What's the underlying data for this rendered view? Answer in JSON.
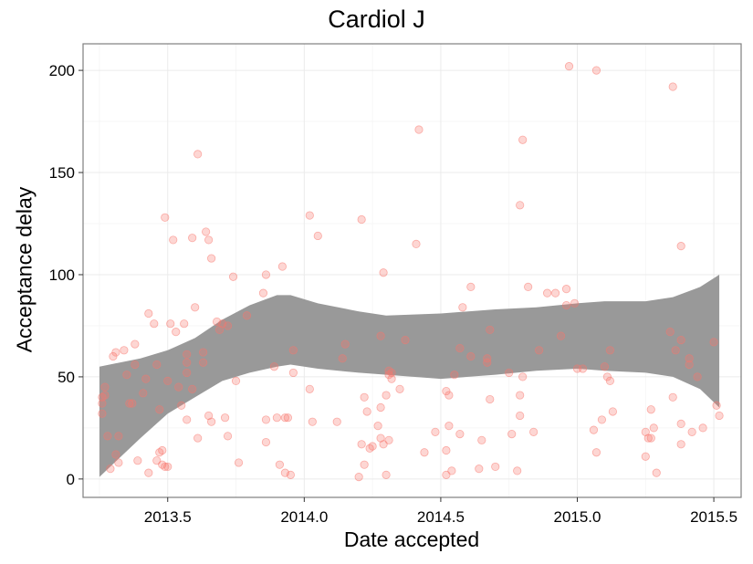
{
  "chart_data": {
    "type": "scatter",
    "title": "Cardiol J",
    "xlabel": "Date accepted",
    "ylabel": "Acceptance delay",
    "xlim": [
      2013.19,
      2015.6
    ],
    "ylim": [
      -9,
      213
    ],
    "x_ticks": [
      2013.5,
      2014.0,
      2014.5,
      2015.0,
      2015.5
    ],
    "x_tick_labels": [
      "2013.5",
      "2014.0",
      "2014.5",
      "2015.0",
      "2015.5"
    ],
    "y_ticks": [
      0,
      50,
      100,
      150,
      200
    ],
    "y_tick_labels": [
      "0",
      "50",
      "100",
      "150",
      "200"
    ],
    "grid": true,
    "point_color": "#f8766d",
    "band_color": "#999999",
    "points": [
      [
        2013.26,
        32
      ],
      [
        2013.26,
        37
      ],
      [
        2013.26,
        40
      ],
      [
        2013.27,
        41
      ],
      [
        2013.27,
        45
      ],
      [
        2013.28,
        21
      ],
      [
        2013.29,
        5
      ],
      [
        2013.3,
        60
      ],
      [
        2013.31,
        62
      ],
      [
        2013.31,
        12
      ],
      [
        2013.32,
        8
      ],
      [
        2013.32,
        21
      ],
      [
        2013.34,
        63
      ],
      [
        2013.35,
        51
      ],
      [
        2013.36,
        37
      ],
      [
        2013.37,
        37
      ],
      [
        2013.38,
        66
      ],
      [
        2013.38,
        56
      ],
      [
        2013.39,
        9
      ],
      [
        2013.41,
        42
      ],
      [
        2013.42,
        49
      ],
      [
        2013.43,
        81
      ],
      [
        2013.43,
        3
      ],
      [
        2013.45,
        76
      ],
      [
        2013.46,
        56
      ],
      [
        2013.46,
        9
      ],
      [
        2013.47,
        13
      ],
      [
        2013.47,
        34
      ],
      [
        2013.48,
        14
      ],
      [
        2013.48,
        7
      ],
      [
        2013.49,
        6
      ],
      [
        2013.49,
        128
      ],
      [
        2013.5,
        48
      ],
      [
        2013.5,
        6
      ],
      [
        2013.51,
        76
      ],
      [
        2013.52,
        117
      ],
      [
        2013.53,
        72
      ],
      [
        2013.54,
        45
      ],
      [
        2013.55,
        36
      ],
      [
        2013.56,
        76
      ],
      [
        2013.57,
        61
      ],
      [
        2013.57,
        57
      ],
      [
        2013.57,
        52
      ],
      [
        2013.57,
        29
      ],
      [
        2013.59,
        44
      ],
      [
        2013.59,
        118
      ],
      [
        2013.6,
        84
      ],
      [
        2013.61,
        20
      ],
      [
        2013.61,
        159
      ],
      [
        2013.63,
        62
      ],
      [
        2013.63,
        57
      ],
      [
        2013.64,
        121
      ],
      [
        2013.65,
        31
      ],
      [
        2013.65,
        117
      ],
      [
        2013.66,
        108
      ],
      [
        2013.66,
        28
      ],
      [
        2013.68,
        77
      ],
      [
        2013.69,
        73
      ],
      [
        2013.7,
        76
      ],
      [
        2013.71,
        30
      ],
      [
        2013.72,
        75
      ],
      [
        2013.72,
        21
      ],
      [
        2013.74,
        99
      ],
      [
        2013.75,
        48
      ],
      [
        2013.76,
        8
      ],
      [
        2013.79,
        80
      ],
      [
        2013.85,
        91
      ],
      [
        2013.86,
        100
      ],
      [
        2013.86,
        29
      ],
      [
        2013.86,
        18
      ],
      [
        2013.89,
        55
      ],
      [
        2013.9,
        30
      ],
      [
        2013.91,
        7
      ],
      [
        2013.92,
        104
      ],
      [
        2013.93,
        3
      ],
      [
        2013.93,
        30
      ],
      [
        2013.94,
        30
      ],
      [
        2013.95,
        2
      ],
      [
        2013.96,
        63
      ],
      [
        2013.96,
        52
      ],
      [
        2014.02,
        44
      ],
      [
        2014.02,
        129
      ],
      [
        2014.03,
        28
      ],
      [
        2014.05,
        119
      ],
      [
        2014.12,
        28
      ],
      [
        2014.14,
        59
      ],
      [
        2014.15,
        66
      ],
      [
        2014.2,
        1
      ],
      [
        2014.21,
        127
      ],
      [
        2014.21,
        17
      ],
      [
        2014.22,
        40
      ],
      [
        2014.22,
        7
      ],
      [
        2014.23,
        33
      ],
      [
        2014.24,
        15
      ],
      [
        2014.25,
        16
      ],
      [
        2014.27,
        26
      ],
      [
        2014.28,
        35
      ],
      [
        2014.28,
        70
      ],
      [
        2014.28,
        20
      ],
      [
        2014.29,
        101
      ],
      [
        2014.29,
        17
      ],
      [
        2014.3,
        41
      ],
      [
        2014.3,
        2
      ],
      [
        2014.31,
        19
      ],
      [
        2014.31,
        53
      ],
      [
        2014.31,
        51
      ],
      [
        2014.32,
        52
      ],
      [
        2014.32,
        49
      ],
      [
        2014.35,
        44
      ],
      [
        2014.37,
        68
      ],
      [
        2014.41,
        115
      ],
      [
        2014.42,
        171
      ],
      [
        2014.44,
        13
      ],
      [
        2014.48,
        23
      ],
      [
        2014.52,
        2
      ],
      [
        2014.52,
        14
      ],
      [
        2014.52,
        43
      ],
      [
        2014.53,
        41
      ],
      [
        2014.53,
        26
      ],
      [
        2014.54,
        4
      ],
      [
        2014.55,
        51
      ],
      [
        2014.57,
        22
      ],
      [
        2014.57,
        64
      ],
      [
        2014.58,
        84
      ],
      [
        2014.61,
        60
      ],
      [
        2014.61,
        94
      ],
      [
        2014.64,
        5
      ],
      [
        2014.65,
        19
      ],
      [
        2014.67,
        57
      ],
      [
        2014.67,
        59
      ],
      [
        2014.68,
        73
      ],
      [
        2014.68,
        39
      ],
      [
        2014.7,
        6
      ],
      [
        2014.75,
        52
      ],
      [
        2014.76,
        22
      ],
      [
        2014.78,
        4
      ],
      [
        2014.79,
        134
      ],
      [
        2014.79,
        31
      ],
      [
        2014.79,
        41
      ],
      [
        2014.8,
        166
      ],
      [
        2014.8,
        50
      ],
      [
        2014.82,
        94
      ],
      [
        2014.84,
        23
      ],
      [
        2014.86,
        63
      ],
      [
        2014.89,
        91
      ],
      [
        2014.92,
        91
      ],
      [
        2014.94,
        70
      ],
      [
        2014.96,
        85
      ],
      [
        2014.96,
        93
      ],
      [
        2014.97,
        202
      ],
      [
        2014.99,
        86
      ],
      [
        2015.0,
        54
      ],
      [
        2015.02,
        54
      ],
      [
        2015.06,
        24
      ],
      [
        2015.07,
        13
      ],
      [
        2015.07,
        200
      ],
      [
        2015.09,
        29
      ],
      [
        2015.1,
        55
      ],
      [
        2015.11,
        50
      ],
      [
        2015.12,
        48
      ],
      [
        2015.12,
        63
      ],
      [
        2015.13,
        33
      ],
      [
        2015.25,
        11
      ],
      [
        2015.25,
        23
      ],
      [
        2015.26,
        20
      ],
      [
        2015.27,
        34
      ],
      [
        2015.27,
        20
      ],
      [
        2015.28,
        25
      ],
      [
        2015.29,
        3
      ],
      [
        2015.34,
        72
      ],
      [
        2015.35,
        192
      ],
      [
        2015.35,
        40
      ],
      [
        2015.36,
        63
      ],
      [
        2015.38,
        68
      ],
      [
        2015.38,
        17
      ],
      [
        2015.38,
        114
      ],
      [
        2015.38,
        27
      ],
      [
        2015.41,
        59
      ],
      [
        2015.41,
        56
      ],
      [
        2015.42,
        23
      ],
      [
        2015.44,
        50
      ],
      [
        2015.46,
        25
      ],
      [
        2015.5,
        67
      ],
      [
        2015.51,
        36
      ],
      [
        2015.52,
        31
      ]
    ],
    "band": {
      "x": [
        2013.25,
        2013.4,
        2013.5,
        2013.6,
        2013.7,
        2013.8,
        2013.9,
        2013.95,
        2014.05,
        2014.2,
        2014.3,
        2014.5,
        2014.7,
        2014.85,
        2015.0,
        2015.1,
        2015.25,
        2015.35,
        2015.45,
        2015.52
      ],
      "upper": [
        55,
        59,
        63,
        69,
        78,
        85,
        90,
        90,
        86,
        82,
        80,
        81,
        83,
        84,
        86,
        87,
        87,
        89,
        94,
        100
      ],
      "lower": [
        1,
        20,
        32,
        40,
        48,
        52,
        55,
        56,
        54,
        52,
        51,
        49,
        51,
        53,
        54,
        53,
        52,
        50,
        44,
        35
      ]
    }
  }
}
